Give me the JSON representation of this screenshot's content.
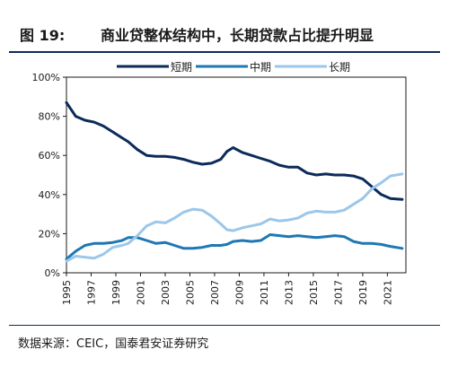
{
  "header": {
    "figure_number": "图 19:",
    "title": "商业贷整体结构中，长期贷款占比提升明显"
  },
  "footer": {
    "source": "数据来源：CEIC，国泰君安证券研究"
  },
  "chart_data": {
    "type": "line",
    "title": "商业贷整体结构中，长期贷款占比提升明显",
    "xlabel": "",
    "ylabel": "",
    "x_range": [
      1995,
      2022.5
    ],
    "ylim": [
      0,
      100
    ],
    "y_ticks": [
      "0%",
      "20%",
      "40%",
      "60%",
      "80%",
      "100%"
    ],
    "y_tick_values": [
      0,
      20,
      40,
      60,
      80,
      100
    ],
    "x_ticks": [
      "1995",
      "1997",
      "1999",
      "2001",
      "2003",
      "2005",
      "2007",
      "2009",
      "2011",
      "2013",
      "2015",
      "2017",
      "2019",
      "2021"
    ],
    "x_tick_values": [
      1995,
      1997,
      1999,
      2001,
      2003,
      2005,
      2007,
      2009,
      2011,
      2013,
      2015,
      2017,
      2019,
      2021
    ],
    "legend_position": "top",
    "grid": false,
    "series": [
      {
        "name": "短期",
        "color": "#0c2a5a",
        "x": [
          1995,
          1995.75,
          1996.5,
          1997.25,
          1998,
          1998.75,
          1999.5,
          2000,
          2000.75,
          2001.5,
          2002.25,
          2003,
          2003.75,
          2004.5,
          2005.25,
          2006,
          2006.75,
          2007.5,
          2008,
          2008.5,
          2009.25,
          2010,
          2010.75,
          2011.5,
          2012.25,
          2013,
          2013.75,
          2014.5,
          2015.25,
          2016,
          2016.75,
          2017.5,
          2018.25,
          2019,
          2019.75,
          2020.5,
          2021.25,
          2022.2
        ],
        "values": [
          87,
          80,
          78,
          77,
          75,
          72,
          69,
          67,
          63,
          60,
          59.5,
          59.5,
          59,
          58,
          56.5,
          55.5,
          56,
          58,
          62,
          64,
          61.5,
          60,
          58.5,
          57,
          55,
          54,
          54,
          51,
          50,
          50.5,
          50,
          50,
          49.5,
          48,
          44,
          40,
          38,
          37.5
        ]
      },
      {
        "name": "中期",
        "color": "#1f78b4",
        "x": [
          1995,
          1995.75,
          1996.5,
          1997.25,
          1998,
          1998.75,
          1999.5,
          2000,
          2000.75,
          2001.5,
          2002.25,
          2003,
          2003.75,
          2004.5,
          2005.25,
          2006,
          2006.75,
          2007.5,
          2008,
          2008.5,
          2009.25,
          2010,
          2010.75,
          2011.5,
          2012.25,
          2013,
          2013.75,
          2014.5,
          2015.25,
          2016,
          2016.75,
          2017.5,
          2018.25,
          2019,
          2019.75,
          2020.5,
          2021.25,
          2022.2
        ],
        "values": [
          7,
          11,
          14,
          15,
          15,
          15.5,
          16.5,
          18,
          18,
          16.5,
          15,
          15.5,
          14,
          12.5,
          12.5,
          13,
          14,
          14,
          14.5,
          16,
          16.5,
          16,
          16.5,
          19.5,
          19,
          18.5,
          19,
          18.5,
          18,
          18.5,
          19,
          18.5,
          16,
          15,
          15,
          14.5,
          13.5,
          12.5
        ]
      },
      {
        "name": "长期",
        "color": "#9cc7ea",
        "x": [
          1995,
          1995.75,
          1996.5,
          1997.25,
          1998,
          1998.75,
          1999.5,
          2000,
          2000.75,
          2001.5,
          2002.25,
          2003,
          2003.75,
          2004.5,
          2005.25,
          2006,
          2006.75,
          2007.5,
          2008,
          2008.5,
          2009.25,
          2010,
          2010.75,
          2011.5,
          2012.25,
          2013,
          2013.75,
          2014.5,
          2015.25,
          2016,
          2016.75,
          2017.5,
          2018.25,
          2019,
          2019.75,
          2020.5,
          2021.25,
          2022.2
        ],
        "values": [
          6,
          8.5,
          8,
          7.5,
          9.5,
          13,
          14,
          15,
          19,
          24,
          26,
          25.5,
          28,
          31,
          32.5,
          32,
          29,
          25,
          22,
          21.5,
          23,
          24,
          25,
          27.5,
          26.5,
          27,
          28,
          30.5,
          31.5,
          31,
          31,
          32,
          35,
          38,
          43,
          46,
          49.5,
          50.5
        ]
      }
    ]
  }
}
